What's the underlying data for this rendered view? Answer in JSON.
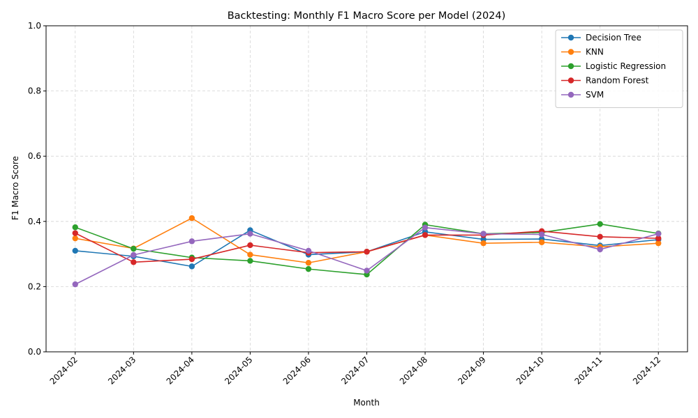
{
  "chart_data": {
    "type": "line",
    "title": "Backtesting: Monthly F1 Macro Score per Model (2024)",
    "xlabel": "Month",
    "ylabel": "F1 Macro Score",
    "ylim": [
      0,
      1
    ],
    "yticks": [
      "0.0",
      "0.2",
      "0.4",
      "0.6",
      "0.8",
      "1.0"
    ],
    "ytick_values": [
      0,
      0.2,
      0.4,
      0.6,
      0.8,
      1.0
    ],
    "grid": true,
    "legend_position": "top-right",
    "x": [
      "2024-02",
      "2024-03",
      "2024-04",
      "2024-05",
      "2024-06",
      "2024-07",
      "2024-08",
      "2024-09",
      "2024-10",
      "2024-11",
      "2024-12"
    ],
    "series": [
      {
        "name": "Decision Tree",
        "color": "#1f77b4",
        "values": [
          0.31,
          0.293,
          0.262,
          0.373,
          0.298,
          0.307,
          0.368,
          0.345,
          0.346,
          0.326,
          0.344
        ]
      },
      {
        "name": "KNN",
        "color": "#ff7f0e",
        "values": [
          0.348,
          0.317,
          0.41,
          0.298,
          0.273,
          0.307,
          0.358,
          0.333,
          0.336,
          0.322,
          0.333
        ]
      },
      {
        "name": "Logistic Regression",
        "color": "#2ca02c",
        "values": [
          0.382,
          0.316,
          0.289,
          0.279,
          0.254,
          0.237,
          0.39,
          0.362,
          0.366,
          0.392,
          0.363
        ]
      },
      {
        "name": "Random Forest",
        "color": "#d62728",
        "values": [
          0.364,
          0.275,
          0.284,
          0.327,
          0.304,
          0.307,
          0.358,
          0.358,
          0.37,
          0.353,
          0.348
        ]
      },
      {
        "name": "SVM",
        "color": "#9467bd",
        "values": [
          0.207,
          0.297,
          0.339,
          0.362,
          0.31,
          0.249,
          0.381,
          0.362,
          0.36,
          0.314,
          0.362
        ]
      }
    ]
  }
}
